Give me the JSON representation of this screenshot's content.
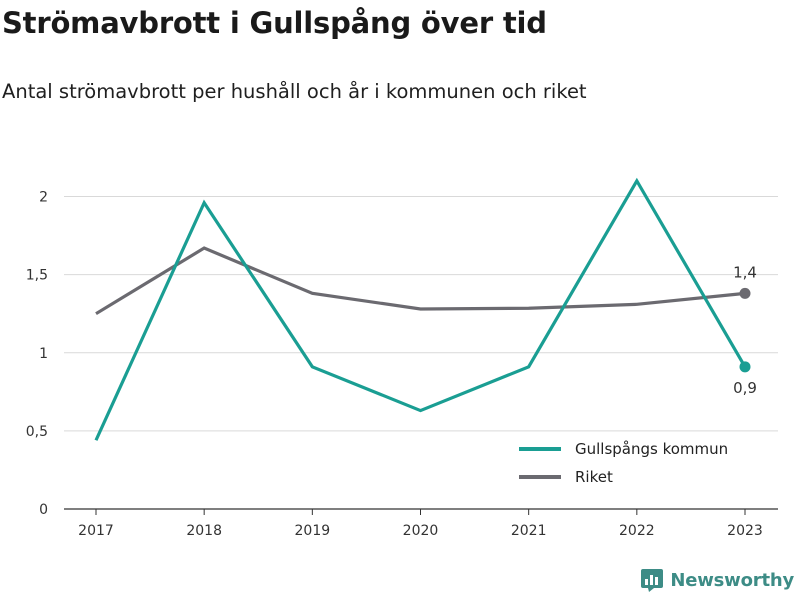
{
  "header": {
    "title": "Strömavbrott i Gullspång över tid",
    "subtitle": "Antal strömavbrott per hushåll och år i kommunen och riket"
  },
  "brand": {
    "name": "Newsworthy",
    "icon": "newsworthy-logo-icon",
    "color": "#3d8c86"
  },
  "chart_data": {
    "type": "line",
    "title": "Strömavbrott i Gullspång över tid",
    "subtitle": "Antal strömavbrott per hushåll och år i kommunen och riket",
    "xlabel": "",
    "ylabel": "",
    "x": [
      "2017",
      "2018",
      "2019",
      "2020",
      "2021",
      "2022",
      "2023"
    ],
    "ylim": [
      0,
      2.2
    ],
    "yticks": [
      0,
      0.5,
      1,
      1.5,
      2
    ],
    "ytick_labels": [
      "0",
      "0,5",
      "1",
      "1,5",
      "2"
    ],
    "grid": true,
    "legend_position": "bottom-right",
    "series": [
      {
        "name": "Gullspångs kommun",
        "color": "#1a9e93",
        "values": [
          0.44,
          1.96,
          0.91,
          0.63,
          0.91,
          2.1,
          0.91
        ],
        "end_label": "0,9",
        "end_label_position": "below"
      },
      {
        "name": "Riket",
        "color": "#6b6a70",
        "values": [
          1.25,
          1.67,
          1.38,
          1.28,
          1.285,
          1.31,
          1.38
        ],
        "end_label": "1,4",
        "end_label_position": "above"
      }
    ]
  }
}
